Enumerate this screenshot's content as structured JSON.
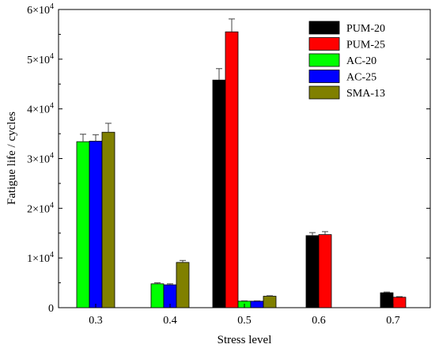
{
  "chart_data": {
    "type": "bar",
    "xlabel": "Stress level",
    "ylabel": "Fatigue life / cycles",
    "categories": [
      "0.3",
      "0.4",
      "0.5",
      "0.6",
      "0.7"
    ],
    "ylim": [
      0,
      60000
    ],
    "y_ticks": [
      {
        "value": 0,
        "mant": "0",
        "exp": ""
      },
      {
        "value": 10000,
        "mant": "1×10",
        "exp": "4"
      },
      {
        "value": 20000,
        "mant": "2×10",
        "exp": "4"
      },
      {
        "value": 30000,
        "mant": "3×10",
        "exp": "4"
      },
      {
        "value": 40000,
        "mant": "4×10",
        "exp": "4"
      },
      {
        "value": 50000,
        "mant": "5×10",
        "exp": "4"
      },
      {
        "value": 60000,
        "mant": "6×10",
        "exp": "4"
      }
    ],
    "legend_position": "top-right",
    "grid": false,
    "series": [
      {
        "name": "PUM-20",
        "color": "#000000",
        "values": [
          null,
          null,
          45800,
          14500,
          3000
        ],
        "errors": [
          null,
          null,
          2300,
          600,
          150
        ]
      },
      {
        "name": "PUM-25",
        "color": "#ff0000",
        "values": [
          null,
          null,
          55500,
          14700,
          2100
        ],
        "errors": [
          null,
          null,
          2600,
          600,
          120
        ]
      },
      {
        "name": "AC-20",
        "color": "#00ff00",
        "values": [
          33400,
          4800,
          1300,
          null,
          null
        ],
        "errors": [
          1500,
          200,
          80,
          null,
          null
        ]
      },
      {
        "name": "AC-25",
        "color": "#0000ff",
        "values": [
          33500,
          4600,
          1300,
          null,
          null
        ],
        "errors": [
          1300,
          200,
          80,
          null,
          null
        ]
      },
      {
        "name": "SMA-13",
        "color": "#808000",
        "values": [
          35300,
          9100,
          2300,
          null,
          null
        ],
        "errors": [
          1800,
          400,
          100,
          null,
          null
        ]
      }
    ]
  }
}
